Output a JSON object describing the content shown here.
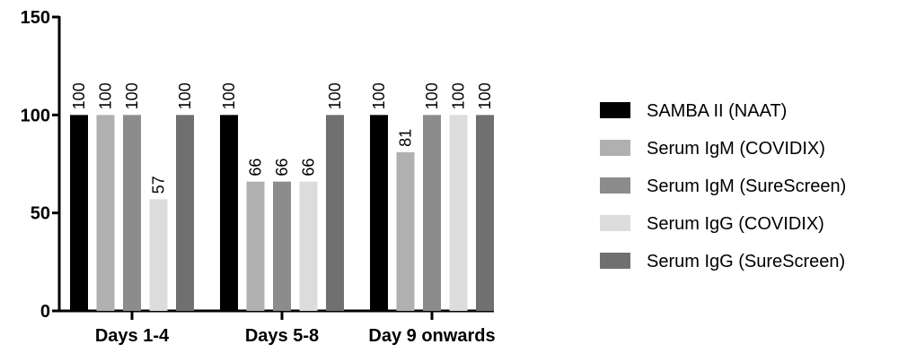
{
  "chart_data": {
    "type": "bar",
    "categories": [
      "Days 1-4",
      "Days 5-8",
      "Day 9 onwards"
    ],
    "series": [
      {
        "name": "SAMBA II (NAAT)",
        "values": [
          100,
          100,
          100
        ],
        "color": "#000000",
        "labels": [
          "100",
          "100",
          "100"
        ]
      },
      {
        "name": "Serum IgM (COVIDIX)",
        "values": [
          100,
          66,
          81
        ],
        "color": "#b0b0b0",
        "labels": [
          "100",
          "66",
          "81"
        ]
      },
      {
        "name": "Serum IgM (SureScreen)",
        "values": [
          100,
          66,
          100
        ],
        "color": "#8c8c8c",
        "labels": [
          "100",
          "66",
          "100"
        ]
      },
      {
        "name": "Serum IgG (COVIDIX)",
        "values": [
          57,
          66,
          100
        ],
        "color": "#dcdcdc",
        "labels": [
          "57",
          "66",
          "100"
        ]
      },
      {
        "name": "Serum IgG (SureScreen)",
        "values": [
          100,
          100,
          100
        ],
        "color": "#707070",
        "labels": [
          "100",
          "100",
          "100"
        ]
      }
    ],
    "yticks": [
      "0",
      "50",
      "100",
      "150"
    ],
    "ytick_values": [
      0,
      50,
      100,
      150
    ],
    "ylim": [
      0,
      150
    ],
    "legend_position": "right",
    "grid": false
  }
}
